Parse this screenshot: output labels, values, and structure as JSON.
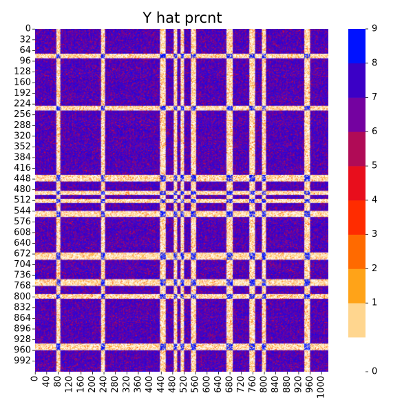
{
  "chart_data": {
    "type": "heatmap",
    "title": "Y hat prcnt",
    "xlabel": "",
    "ylabel": "",
    "n_rows": 1024,
    "n_cols": 1024,
    "x_tick_labels": [
      "0",
      "40",
      "80",
      "120",
      "160",
      "200",
      "240",
      "280",
      "320",
      "360",
      "400",
      "440",
      "480",
      "520",
      "560",
      "600",
      "640",
      "680",
      "720",
      "760",
      "800",
      "840",
      "880",
      "920",
      "960",
      "1000"
    ],
    "y_tick_labels": [
      "0",
      "32",
      "64",
      "96",
      "128",
      "160",
      "192",
      "224",
      "256",
      "288",
      "320",
      "352",
      "384",
      "416",
      "448",
      "480",
      "512",
      "544",
      "576",
      "608",
      "640",
      "672",
      "704",
      "736",
      "768",
      "800",
      "832",
      "864",
      "896",
      "928",
      "960",
      "992"
    ],
    "value_range": [
      0,
      9
    ],
    "colorbar": {
      "tick_labels": [
        "0",
        "1",
        "2",
        "3",
        "4",
        "5",
        "6",
        "7",
        "8",
        "9"
      ],
      "colors": [
        "#FFFFFF",
        "#FFD68F",
        "#FFA318",
        "#FF6A00",
        "#FF2C00",
        "#E80E1C",
        "#B00B56",
        "#7402A0",
        "#3B00C6",
        "#0012FF"
      ]
    },
    "band_pattern": {
      "light_ranges": [
        [
          74,
          88
        ],
        [
          230,
          244
        ],
        [
          436,
          456
        ],
        [
          484,
          496
        ],
        [
          508,
          520
        ],
        [
          544,
          562
        ],
        [
          668,
          690
        ],
        [
          748,
          768
        ],
        [
          792,
          806
        ],
        [
          940,
          960
        ]
      ],
      "dominant_value_block": 8,
      "dominant_value_band": 1
    }
  }
}
